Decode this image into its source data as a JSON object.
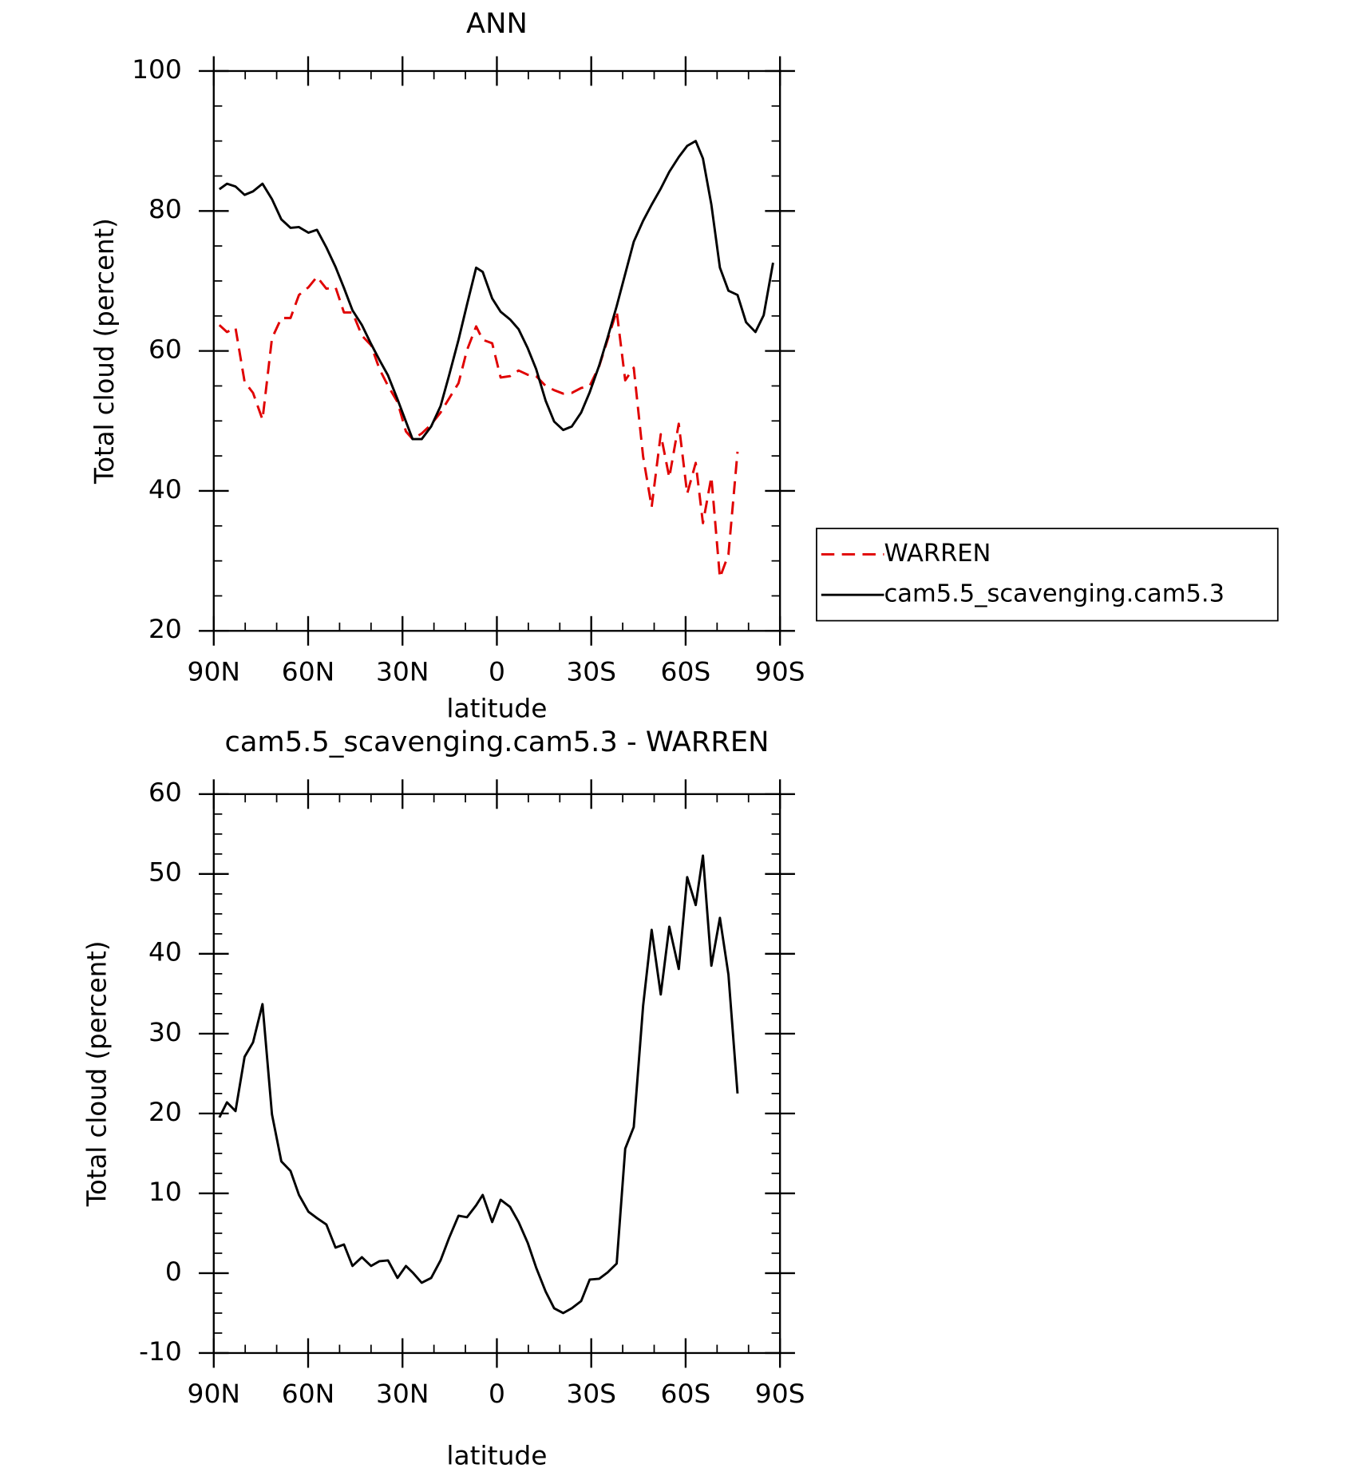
{
  "chart_data": [
    {
      "type": "line",
      "title": "ANN",
      "xlabel": "latitude",
      "ylabel": "Total cloud (percent)",
      "x": [
        88.2,
        85.8,
        83.1,
        80.2,
        77.5,
        74.5,
        71.5,
        68.5,
        65.6,
        62.9,
        59.9,
        57.2,
        54.2,
        51.3,
        48.6,
        45.9,
        42.9,
        40.0,
        37.3,
        34.6,
        31.6,
        28.9,
        26.8,
        23.9,
        20.9,
        17.9,
        15.2,
        12.2,
        9.5,
        6.6,
        4.5,
        1.5,
        -1.2,
        -4.2,
        -6.9,
        -9.8,
        -12.5,
        -15.5,
        -18.2,
        -21.1,
        -23.8,
        -26.8,
        -29.5,
        -32.5,
        -35.2,
        -38.1,
        -40.8,
        -43.5,
        -46.5,
        -49.2,
        -52.1,
        -54.8,
        -57.8,
        -60.5,
        -63.2,
        -65.5,
        -68.2,
        -70.9,
        -73.6,
        -76.5,
        -79.2,
        -82.2,
        -84.8,
        -87.8
      ],
      "series": [
        {
          "name": "WARREN",
          "color": "#e00000",
          "dash": true,
          "values": [
            63.7,
            62.7,
            63.3,
            55.6,
            54.0,
            50.2,
            61.8,
            64.7,
            64.7,
            68.0,
            69.1,
            70.6,
            68.9,
            69.1,
            65.5,
            65.5,
            62.2,
            60.8,
            57.4,
            55.0,
            52.7,
            48.5,
            47.4,
            48.2,
            49.5,
            51.2,
            53.2,
            55.4,
            60.1,
            63.5,
            61.6,
            61.1,
            56.2,
            56.4,
            57.2,
            56.6,
            56.4,
            55.0,
            54.4,
            53.9,
            54.0,
            54.7,
            55.0,
            57.8,
            61.6,
            65.7,
            55.8,
            57.6,
            44.9,
            37.7,
            48.1,
            41.9,
            49.6,
            39.6,
            44.0,
            35.4,
            42.0,
            27.6,
            30.9,
            45.6,
            null,
            null,
            null,
            null
          ]
        },
        {
          "name": "cam5.5_scavenging.cam5.3",
          "color": "#000000",
          "dash": false,
          "values": [
            83.1,
            83.9,
            83.5,
            82.3,
            82.8,
            83.9,
            81.7,
            78.8,
            77.6,
            77.7,
            76.9,
            77.3,
            74.8,
            72.0,
            69.0,
            65.8,
            63.7,
            61.0,
            58.7,
            56.5,
            53.1,
            49.9,
            47.4,
            47.4,
            49.2,
            52.1,
            56.5,
            61.6,
            66.6,
            71.9,
            71.3,
            67.5,
            65.6,
            64.5,
            63.1,
            60.4,
            57.4,
            52.9,
            49.9,
            48.7,
            49.2,
            51.2,
            54.1,
            57.9,
            61.9,
            66.4,
            71.0,
            75.6,
            78.6,
            80.9,
            83.2,
            85.6,
            87.7,
            89.3,
            90.0,
            87.5,
            80.9,
            71.9,
            68.6,
            68.0,
            64.1,
            62.7,
            65.1,
            72.6
          ]
        }
      ],
      "xlim": [
        90,
        -90
      ],
      "xticks": [
        {
          "value": 90,
          "label": "90N"
        },
        {
          "value": 60,
          "label": "60N"
        },
        {
          "value": 30,
          "label": "30N"
        },
        0,
        {
          "value": -30,
          "label": "30S"
        },
        {
          "value": -60,
          "label": "60S"
        },
        {
          "value": -90,
          "label": "90S"
        }
      ],
      "ylim": [
        20,
        100
      ],
      "yticks": [
        20,
        40,
        60,
        80,
        100
      ],
      "legend": "right"
    },
    {
      "type": "line",
      "title": "cam5.5_scavenging.cam5.3 - WARREN",
      "xlabel": "latitude",
      "ylabel": "Total cloud (percent)",
      "x": [
        88.2,
        85.8,
        83.1,
        80.2,
        77.5,
        74.5,
        71.5,
        68.5,
        65.6,
        62.9,
        59.9,
        57.2,
        54.2,
        51.3,
        48.6,
        45.9,
        42.9,
        40.0,
        37.3,
        34.6,
        31.6,
        28.9,
        26.8,
        23.9,
        20.9,
        17.9,
        15.2,
        12.2,
        9.5,
        6.6,
        4.5,
        1.5,
        -1.2,
        -4.2,
        -6.9,
        -9.8,
        -12.5,
        -15.5,
        -18.2,
        -21.1,
        -23.8,
        -26.8,
        -29.5,
        -32.5,
        -35.2,
        -38.1,
        -40.8,
        -43.5,
        -46.5,
        -49.2,
        -52.1,
        -54.8,
        -57.8,
        -60.5,
        -63.2,
        -65.5,
        -68.2,
        -70.9,
        -73.6,
        -76.5,
        -79.2,
        -82.2,
        -84.8,
        -87.8
      ],
      "series": [
        {
          "color": "#000000",
          "dash": false,
          "values": [
            19.5,
            21.4,
            20.3,
            27.1,
            28.9,
            33.7,
            19.9,
            14.0,
            12.8,
            9.8,
            7.7,
            6.9,
            6.1,
            3.2,
            3.6,
            0.9,
            2.0,
            0.9,
            1.5,
            1.6,
            -0.6,
            0.9,
            0.1,
            -1.2,
            -0.6,
            1.6,
            4.4,
            7.2,
            7.0,
            8.5,
            9.8,
            6.4,
            9.2,
            8.3,
            6.4,
            3.8,
            0.7,
            -2.3,
            -4.4,
            -5.0,
            -4.4,
            -3.5,
            -0.8,
            -0.7,
            0.1,
            1.2,
            15.6,
            18.3,
            33.5,
            43.0,
            34.9,
            43.4,
            38.1,
            49.6,
            46.1,
            52.3,
            38.5,
            44.5,
            37.4,
            22.5,
            null,
            null,
            null,
            null
          ]
        }
      ],
      "xlim": [
        90,
        -90
      ],
      "xticks": [
        {
          "value": 90,
          "label": "90N"
        },
        {
          "value": 60,
          "label": "60N"
        },
        {
          "value": 30,
          "label": "30N"
        },
        0,
        {
          "value": -30,
          "label": "30S"
        },
        {
          "value": -60,
          "label": "60S"
        },
        {
          "value": -90,
          "label": "90S"
        }
      ],
      "ylim": [
        -10,
        60
      ],
      "yticks": [
        -10,
        0,
        10,
        20,
        30,
        40,
        50,
        60
      ]
    }
  ]
}
